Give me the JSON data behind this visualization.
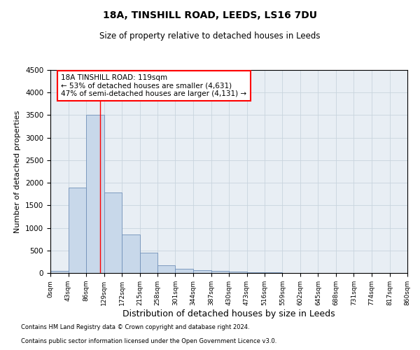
{
  "title": "18A, TINSHILL ROAD, LEEDS, LS16 7DU",
  "subtitle": "Size of property relative to detached houses in Leeds",
  "xlabel": "Distribution of detached houses by size in Leeds",
  "ylabel": "Number of detached properties",
  "footnote1": "Contains HM Land Registry data © Crown copyright and database right 2024.",
  "footnote2": "Contains public sector information licensed under the Open Government Licence v3.0.",
  "bar_color": "#c8d8ea",
  "bar_edge_color": "#7090b8",
  "red_line_x": 119,
  "annotation_title": "18A TINSHILL ROAD: 119sqm",
  "annotation_line1": "← 53% of detached houses are smaller (4,631)",
  "annotation_line2": "47% of semi-detached houses are larger (4,131) →",
  "bin_edges": [
    0,
    43,
    86,
    129,
    172,
    215,
    258,
    301,
    344,
    387,
    430,
    473,
    516,
    559,
    602,
    645,
    688,
    731,
    774,
    817,
    860
  ],
  "bar_heights": [
    50,
    1900,
    3500,
    1780,
    860,
    450,
    175,
    100,
    60,
    40,
    25,
    18,
    10,
    0,
    0,
    0,
    0,
    0,
    0,
    0
  ],
  "ylim": [
    0,
    4500
  ],
  "yticks": [
    0,
    500,
    1000,
    1500,
    2000,
    2500,
    3000,
    3500,
    4000,
    4500
  ],
  "grid_color": "#c8d4de",
  "plot_bg_color": "#e8eef4",
  "title_fontsize": 10,
  "subtitle_fontsize": 8.5,
  "ylabel_fontsize": 8,
  "xlabel_fontsize": 9,
  "ytick_fontsize": 7.5,
  "xtick_fontsize": 6.5,
  "footnote_fontsize": 6,
  "annot_fontsize": 7.5
}
